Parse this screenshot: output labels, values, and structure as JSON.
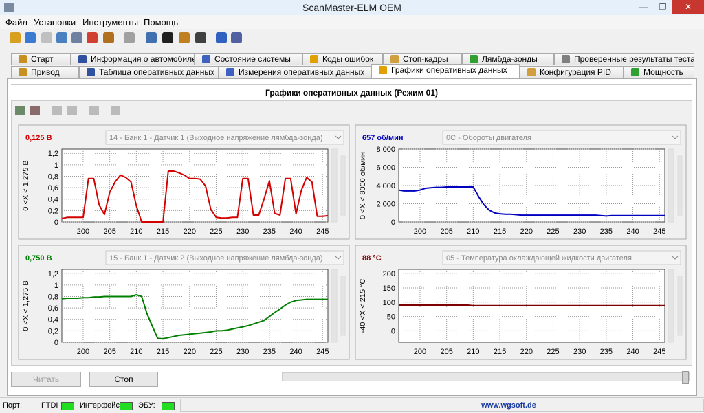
{
  "window": {
    "title": "ScanMaster-ELM OEM"
  },
  "menu": [
    "Файл",
    "Установки",
    "Инструменты",
    "Помощь"
  ],
  "tabs": {
    "row1": [
      "Старт",
      "Информация о автомобиле",
      "Состояние системы",
      "Коды ошибок",
      "Стоп-кадры",
      "Лямбда-зонды",
      "Проверенные результаты теста"
    ],
    "row2": [
      "Привод",
      "Таблица оперативных данных",
      "Измерения оперативных данных",
      "Графики оперативных данных",
      "Конфигурация PID",
      "Мощность"
    ]
  },
  "panel": {
    "title": "Графики оперативных данных (Режим 01)"
  },
  "charts": [
    {
      "type": "line",
      "reading": "0,125 В",
      "source": "14 - Банк 1 - Датчик 1 (Выходное напряжение лямбда-зонда)",
      "y_label": "0  <X <  1,275 В",
      "color": "#d40000",
      "x": [
        196,
        197,
        198,
        199,
        200,
        201,
        202,
        203,
        204,
        205,
        206,
        207,
        208,
        209,
        210,
        211,
        212,
        213,
        214,
        215,
        216,
        217,
        218,
        219,
        220,
        221,
        222,
        223,
        224,
        225,
        226,
        227,
        228,
        229,
        230,
        231,
        232,
        233,
        234,
        235,
        236,
        237,
        238,
        239,
        240,
        241,
        242,
        243,
        244,
        245,
        246
      ],
      "values": [
        0.06,
        0.08,
        0.08,
        0.08,
        0.08,
        0.76,
        0.76,
        0.3,
        0.13,
        0.52,
        0.7,
        0.82,
        0.78,
        0.7,
        0.28,
        0,
        0,
        0,
        0,
        0,
        0.89,
        0.89,
        0.86,
        0.82,
        0.76,
        0.76,
        0.75,
        0.63,
        0.22,
        0.08,
        0.07,
        0.07,
        0.08,
        0.08,
        0.76,
        0.76,
        0.12,
        0.12,
        0.4,
        0.72,
        0.15,
        0.12,
        0.76,
        0.76,
        0.14,
        0.55,
        0.78,
        0.7,
        0.1,
        0.1,
        0.11
      ],
      "xlim": [
        196,
        246
      ],
      "ylim": [
        0,
        1.275
      ],
      "xticks": [
        200,
        205,
        210,
        215,
        220,
        225,
        230,
        235,
        240,
        245
      ],
      "yticks": [
        0,
        {
          "value": 0.2,
          "label": "0,2"
        },
        {
          "value": 0.4,
          "label": "0,4"
        },
        {
          "value": 0.6,
          "label": "0,6"
        },
        {
          "value": 0.8,
          "label": "0,8"
        },
        1,
        {
          "value": 1.2,
          "label": "1,2"
        }
      ],
      "grid": true
    },
    {
      "type": "line",
      "reading": "657 об/мин",
      "source": "0C - Обороты двигателя",
      "y_label": "0  <X <  8000 об/мин",
      "color": "#0000c0",
      "x": [
        196,
        197,
        198,
        199,
        200,
        201,
        202,
        203,
        204,
        205,
        206,
        207,
        208,
        209,
        210,
        211,
        212,
        213,
        214,
        215,
        216,
        217,
        218,
        219,
        220,
        221,
        222,
        223,
        224,
        225,
        226,
        227,
        228,
        229,
        230,
        231,
        232,
        233,
        234,
        235,
        236,
        237,
        238,
        239,
        240,
        241,
        242,
        243,
        244,
        245,
        246
      ],
      "values": [
        3500,
        3400,
        3400,
        3400,
        3500,
        3700,
        3750,
        3800,
        3800,
        3850,
        3850,
        3850,
        3850,
        3850,
        3850,
        2800,
        1900,
        1300,
        1000,
        900,
        850,
        850,
        800,
        750,
        750,
        750,
        750,
        750,
        750,
        750,
        750,
        750,
        750,
        750,
        750,
        750,
        750,
        750,
        700,
        650,
        700,
        700,
        700,
        700,
        700,
        700,
        700,
        700,
        700,
        700,
        700
      ],
      "xlim": [
        196,
        246
      ],
      "ylim": [
        0,
        8000
      ],
      "xticks": [
        200,
        205,
        210,
        215,
        220,
        225,
        230,
        235,
        240,
        245
      ],
      "yticks": [
        0,
        {
          "value": 2000,
          "label": "2 000"
        },
        {
          "value": 4000,
          "label": "4 000"
        },
        {
          "value": 6000,
          "label": "6 000"
        },
        {
          "value": 8000,
          "label": "8 000"
        }
      ],
      "grid": true
    },
    {
      "type": "line",
      "reading": "0,750 В",
      "source": "15 - Банк 1 - Датчик 2 (Выходное напряжение лямбда-зонда)",
      "y_label": "0  <X <  1,275 В",
      "color": "#008000",
      "x": [
        196,
        197,
        198,
        199,
        200,
        201,
        202,
        203,
        204,
        205,
        206,
        207,
        208,
        209,
        210,
        211,
        212,
        213,
        214,
        215,
        216,
        217,
        218,
        219,
        220,
        221,
        222,
        223,
        224,
        225,
        226,
        227,
        228,
        229,
        230,
        231,
        232,
        233,
        234,
        235,
        236,
        237,
        238,
        239,
        240,
        241,
        242,
        243,
        244,
        245,
        246
      ],
      "values": [
        0.76,
        0.77,
        0.77,
        0.77,
        0.78,
        0.78,
        0.79,
        0.79,
        0.8,
        0.8,
        0.8,
        0.8,
        0.8,
        0.8,
        0.83,
        0.8,
        0.5,
        0.28,
        0.07,
        0.06,
        0.08,
        0.1,
        0.12,
        0.13,
        0.14,
        0.15,
        0.16,
        0.17,
        0.18,
        0.2,
        0.2,
        0.21,
        0.23,
        0.25,
        0.27,
        0.29,
        0.32,
        0.35,
        0.38,
        0.45,
        0.52,
        0.58,
        0.65,
        0.7,
        0.73,
        0.74,
        0.75,
        0.75,
        0.75,
        0.75,
        0.75
      ],
      "xlim": [
        196,
        246
      ],
      "ylim": [
        0,
        1.275
      ],
      "xticks": [
        200,
        205,
        210,
        215,
        220,
        225,
        230,
        235,
        240,
        245
      ],
      "yticks": [
        0,
        {
          "value": 0.2,
          "label": "0,2"
        },
        {
          "value": 0.4,
          "label": "0,4"
        },
        {
          "value": 0.6,
          "label": "0,6"
        },
        {
          "value": 0.8,
          "label": "0,8"
        },
        1,
        {
          "value": 1.2,
          "label": "1,2"
        }
      ],
      "grid": true
    },
    {
      "type": "line",
      "reading": "88 °C",
      "source": "05 - Температура охлаждающей жидкости двигателя",
      "y_label": "-40  <X <  215 °C",
      "color": "#800000",
      "x": [
        196,
        197,
        198,
        199,
        200,
        201,
        202,
        203,
        204,
        205,
        206,
        207,
        208,
        209,
        210,
        211,
        212,
        213,
        214,
        215,
        216,
        217,
        218,
        219,
        220,
        221,
        222,
        223,
        224,
        225,
        226,
        227,
        228,
        229,
        230,
        231,
        232,
        233,
        234,
        235,
        236,
        237,
        238,
        239,
        240,
        241,
        242,
        243,
        244,
        245,
        246
      ],
      "values": [
        90,
        90,
        90,
        90,
        90,
        90,
        90,
        90,
        90,
        90,
        90,
        90,
        90,
        90,
        88,
        88,
        88,
        88,
        88,
        88,
        88,
        88,
        88,
        88,
        88,
        88,
        88,
        88,
        88,
        88,
        88,
        88,
        88,
        88,
        88,
        88,
        88,
        88,
        88,
        88,
        88,
        88,
        88,
        88,
        88,
        88,
        88,
        88,
        88,
        88,
        88
      ],
      "xlim": [
        196,
        246
      ],
      "ylim": [
        -40,
        215
      ],
      "xticks": [
        200,
        205,
        210,
        215,
        220,
        225,
        230,
        235,
        240,
        245
      ],
      "yticks": [
        0,
        50,
        100,
        150,
        200
      ],
      "grid": true
    }
  ],
  "buttons": [
    "Читать",
    "Стоп"
  ],
  "status": {
    "port_label": "Порт:",
    "port": "FTDI",
    "interface_label": "Интерфейс:",
    "ecu_label": "ЭБУ:",
    "site": "www.wgsoft.de"
  }
}
